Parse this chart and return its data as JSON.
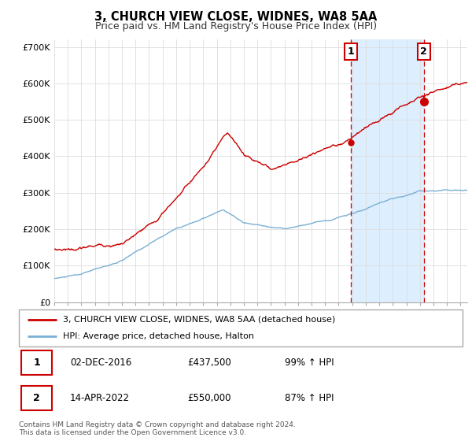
{
  "title": "3, CHURCH VIEW CLOSE, WIDNES, WA8 5AA",
  "subtitle": "Price paid vs. HM Land Registry's House Price Index (HPI)",
  "legend_line1": "3, CHURCH VIEW CLOSE, WIDNES, WA8 5AA (detached house)",
  "legend_line2": "HPI: Average price, detached house, Halton",
  "annotation1_label": "1",
  "annotation1_date": "02-DEC-2016",
  "annotation1_price": "£437,500",
  "annotation1_hpi": "99% ↑ HPI",
  "annotation2_label": "2",
  "annotation2_date": "14-APR-2022",
  "annotation2_price": "£550,000",
  "annotation2_hpi": "87% ↑ HPI",
  "footer": "Contains HM Land Registry data © Crown copyright and database right 2024.\nThis data is licensed under the Open Government Licence v3.0.",
  "red_color": "#cc0000",
  "blue_color": "#7ab0d4",
  "vline_color": "#cc0000",
  "shade_color": "#ddeeff",
  "ylim": [
    0,
    720000
  ],
  "yticks": [
    0,
    100000,
    200000,
    300000,
    400000,
    500000,
    600000,
    700000
  ],
  "ytick_labels": [
    "£0",
    "£100K",
    "£200K",
    "£300K",
    "£400K",
    "£500K",
    "£600K",
    "£700K"
  ],
  "sale1_x": 2016.92,
  "sale1_y": 437500,
  "sale2_x": 2022.29,
  "sale2_y": 550000,
  "xmin": 1995.0,
  "xmax": 2025.5
}
